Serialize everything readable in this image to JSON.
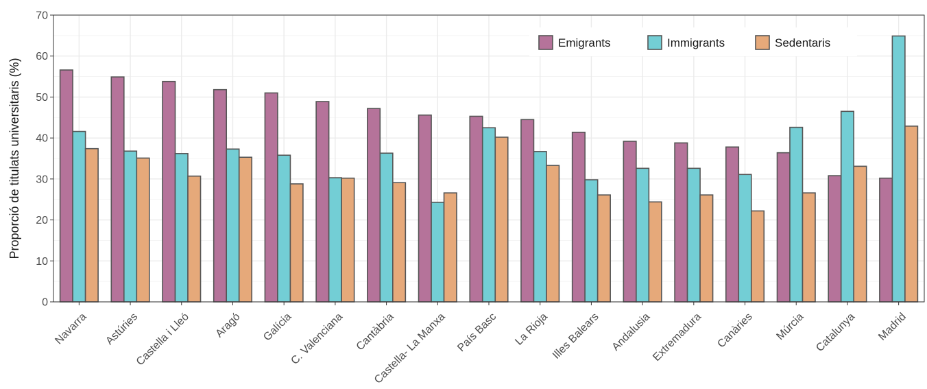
{
  "chart_data": {
    "type": "bar",
    "title": "",
    "xlabel": "",
    "ylabel": "Proporció de titulats universitaris (%)",
    "ylim": [
      0,
      70
    ],
    "yticks": [
      0,
      10,
      20,
      30,
      40,
      50,
      60,
      70
    ],
    "grid": true,
    "legend_position": "top-right",
    "categories": [
      "Navarra",
      "Astúries",
      "Castella i Lleó",
      "Aragó",
      "Galícia",
      "C. Valenciana",
      "Cantàbria",
      "Castella- La Manxa",
      "País Basc",
      "La Rioja",
      "Illes Balears",
      "Andalusia",
      "Extremadura",
      "Canàries",
      "Múrcia",
      "Catalunya",
      "Madrid"
    ],
    "series": [
      {
        "name": "Emigrants",
        "color": "#b5739a",
        "values": [
          56.6,
          54.9,
          53.8,
          51.8,
          51.0,
          48.9,
          47.2,
          45.6,
          45.3,
          44.5,
          41.4,
          39.2,
          38.8,
          37.8,
          36.4,
          30.8,
          30.2
        ]
      },
      {
        "name": "Immigrants",
        "color": "#73ced5",
        "values": [
          41.6,
          36.8,
          36.2,
          37.3,
          35.8,
          30.3,
          36.3,
          24.3,
          42.5,
          36.7,
          29.8,
          32.6,
          32.6,
          31.1,
          42.6,
          46.5,
          64.9
        ]
      },
      {
        "name": "Sedentaris",
        "color": "#e6a97a",
        "values": [
          37.4,
          35.1,
          30.7,
          35.3,
          28.8,
          30.2,
          29.1,
          26.6,
          40.2,
          33.3,
          26.1,
          24.4,
          26.1,
          22.2,
          26.6,
          33.1,
          42.9
        ]
      }
    ]
  }
}
